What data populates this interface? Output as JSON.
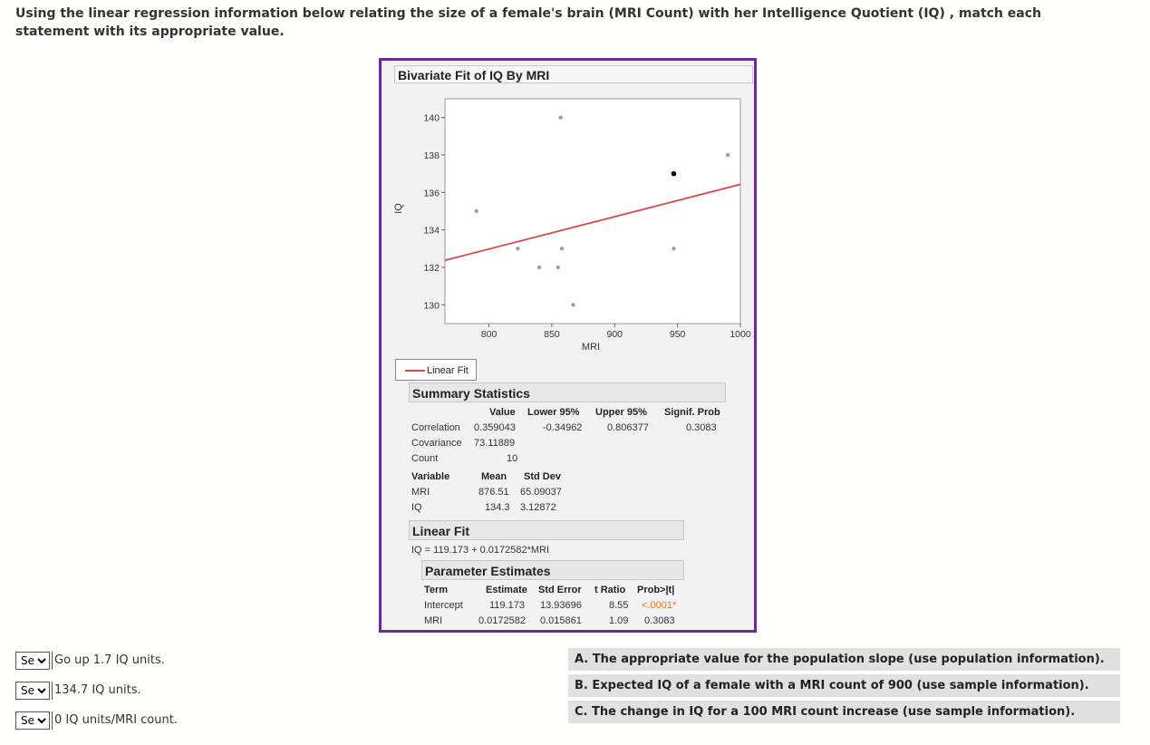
{
  "prompt": "Using the linear regression information below relating the size of a female's brain (MRI Count) with her Intelligence Quotient (IQ) , match each statement with its appropriate value.",
  "figure": {
    "title": "Bivariate Fit of IQ By MRI",
    "legend_label": "Linear Fit",
    "summary": {
      "heading": "Summary Statistics",
      "headers": [
        "Value",
        "Lower 95%",
        "Upper 95%",
        "Signif. Prob"
      ],
      "rows": [
        {
          "label": "Correlation",
          "value": "0.359043",
          "lower": "-0.34962",
          "upper": "0.806377",
          "prob": "0.3083"
        },
        {
          "label": "Covariance",
          "value": "73.11889"
        },
        {
          "label": "Count",
          "value": "10"
        }
      ],
      "var_headers": [
        "Variable",
        "Mean",
        "Std Dev"
      ],
      "vars": [
        {
          "name": "MRI",
          "mean": "876.51",
          "sd": "65.09037"
        },
        {
          "name": "IQ",
          "mean": "134.3",
          "sd": "3.12872"
        }
      ]
    },
    "linear_fit": {
      "heading": "Linear Fit",
      "equation": "IQ = 119.173 + 0.0172582*MRI"
    },
    "params": {
      "heading": "Parameter Estimates",
      "headers": [
        "Term",
        "Estimate",
        "Std Error",
        "t Ratio",
        "Prob>|t|"
      ],
      "rows": [
        {
          "term": "Intercept",
          "est": "119.173",
          "se": "13.93696",
          "t": "8.55",
          "p": "<.0001*"
        },
        {
          "term": "MRI",
          "est": "0.0172582",
          "se": "0.015861",
          "t": "1.09",
          "p": "0.3083"
        }
      ]
    }
  },
  "chart_data": {
    "type": "scatter",
    "title": "Bivariate Fit of IQ By MRI",
    "xlabel": "MRI",
    "ylabel": "IQ",
    "xlim": [
      765,
      1000
    ],
    "ylim": [
      129,
      141
    ],
    "xticks": [
      800,
      850,
      900,
      950,
      1000
    ],
    "yticks": [
      130,
      132,
      134,
      136,
      138,
      140
    ],
    "points": [
      {
        "x": 790,
        "y": 135
      },
      {
        "x": 823,
        "y": 133
      },
      {
        "x": 840,
        "y": 132
      },
      {
        "x": 855,
        "y": 132
      },
      {
        "x": 857,
        "y": 140
      },
      {
        "x": 858,
        "y": 133
      },
      {
        "x": 867,
        "y": 130
      },
      {
        "x": 947,
        "y": 137,
        "highlight": true
      },
      {
        "x": 947,
        "y": 133
      },
      {
        "x": 990,
        "y": 138
      }
    ],
    "fit_line": {
      "name": "Linear Fit",
      "intercept": 119.173,
      "slope": 0.0172582,
      "color": "#d9484f"
    },
    "point_color": "#a0a0a0",
    "highlight_color": "#000000"
  },
  "statements": [
    {
      "select_value": "Se",
      "text": "Go up 1.7 IQ units."
    },
    {
      "select_value": "Se",
      "text": "134.7 IQ units."
    },
    {
      "select_value": "Se",
      "text": "0 IQ units/MRI count."
    }
  ],
  "answers": [
    "A. The appropriate value for the population slope (use population information).",
    "B. Expected IQ of a female with a MRI count of 900 (use sample information).",
    "C. The change in IQ for a 100 MRI count increase (use sample information)."
  ]
}
